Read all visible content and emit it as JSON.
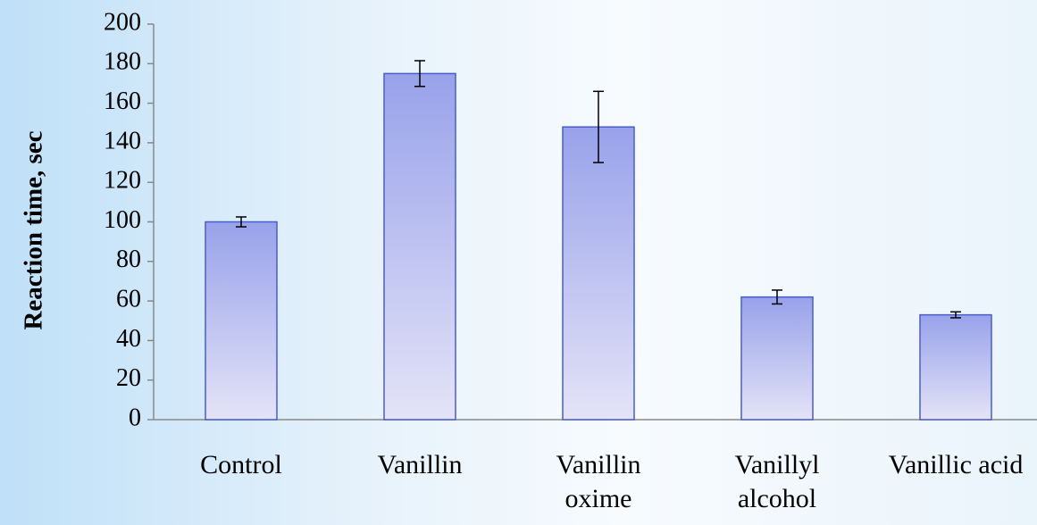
{
  "chart_data": {
    "type": "bar",
    "y_label": "Reaction time, sec",
    "categories": [
      "Control",
      "Vanillin",
      "Vanillin oxime",
      "Vanillyl alcohol",
      "Vanillic acid"
    ],
    "values": [
      100,
      175,
      148,
      62,
      53
    ],
    "errors": [
      2.5,
      6.5,
      18,
      3.5,
      1.5
    ],
    "color": "#a3abec",
    "ylim": [
      0,
      200
    ],
    "yticks": [
      0,
      20,
      40,
      60,
      80,
      100,
      120,
      140,
      160,
      180,
      200
    ],
    "grid": false
  }
}
